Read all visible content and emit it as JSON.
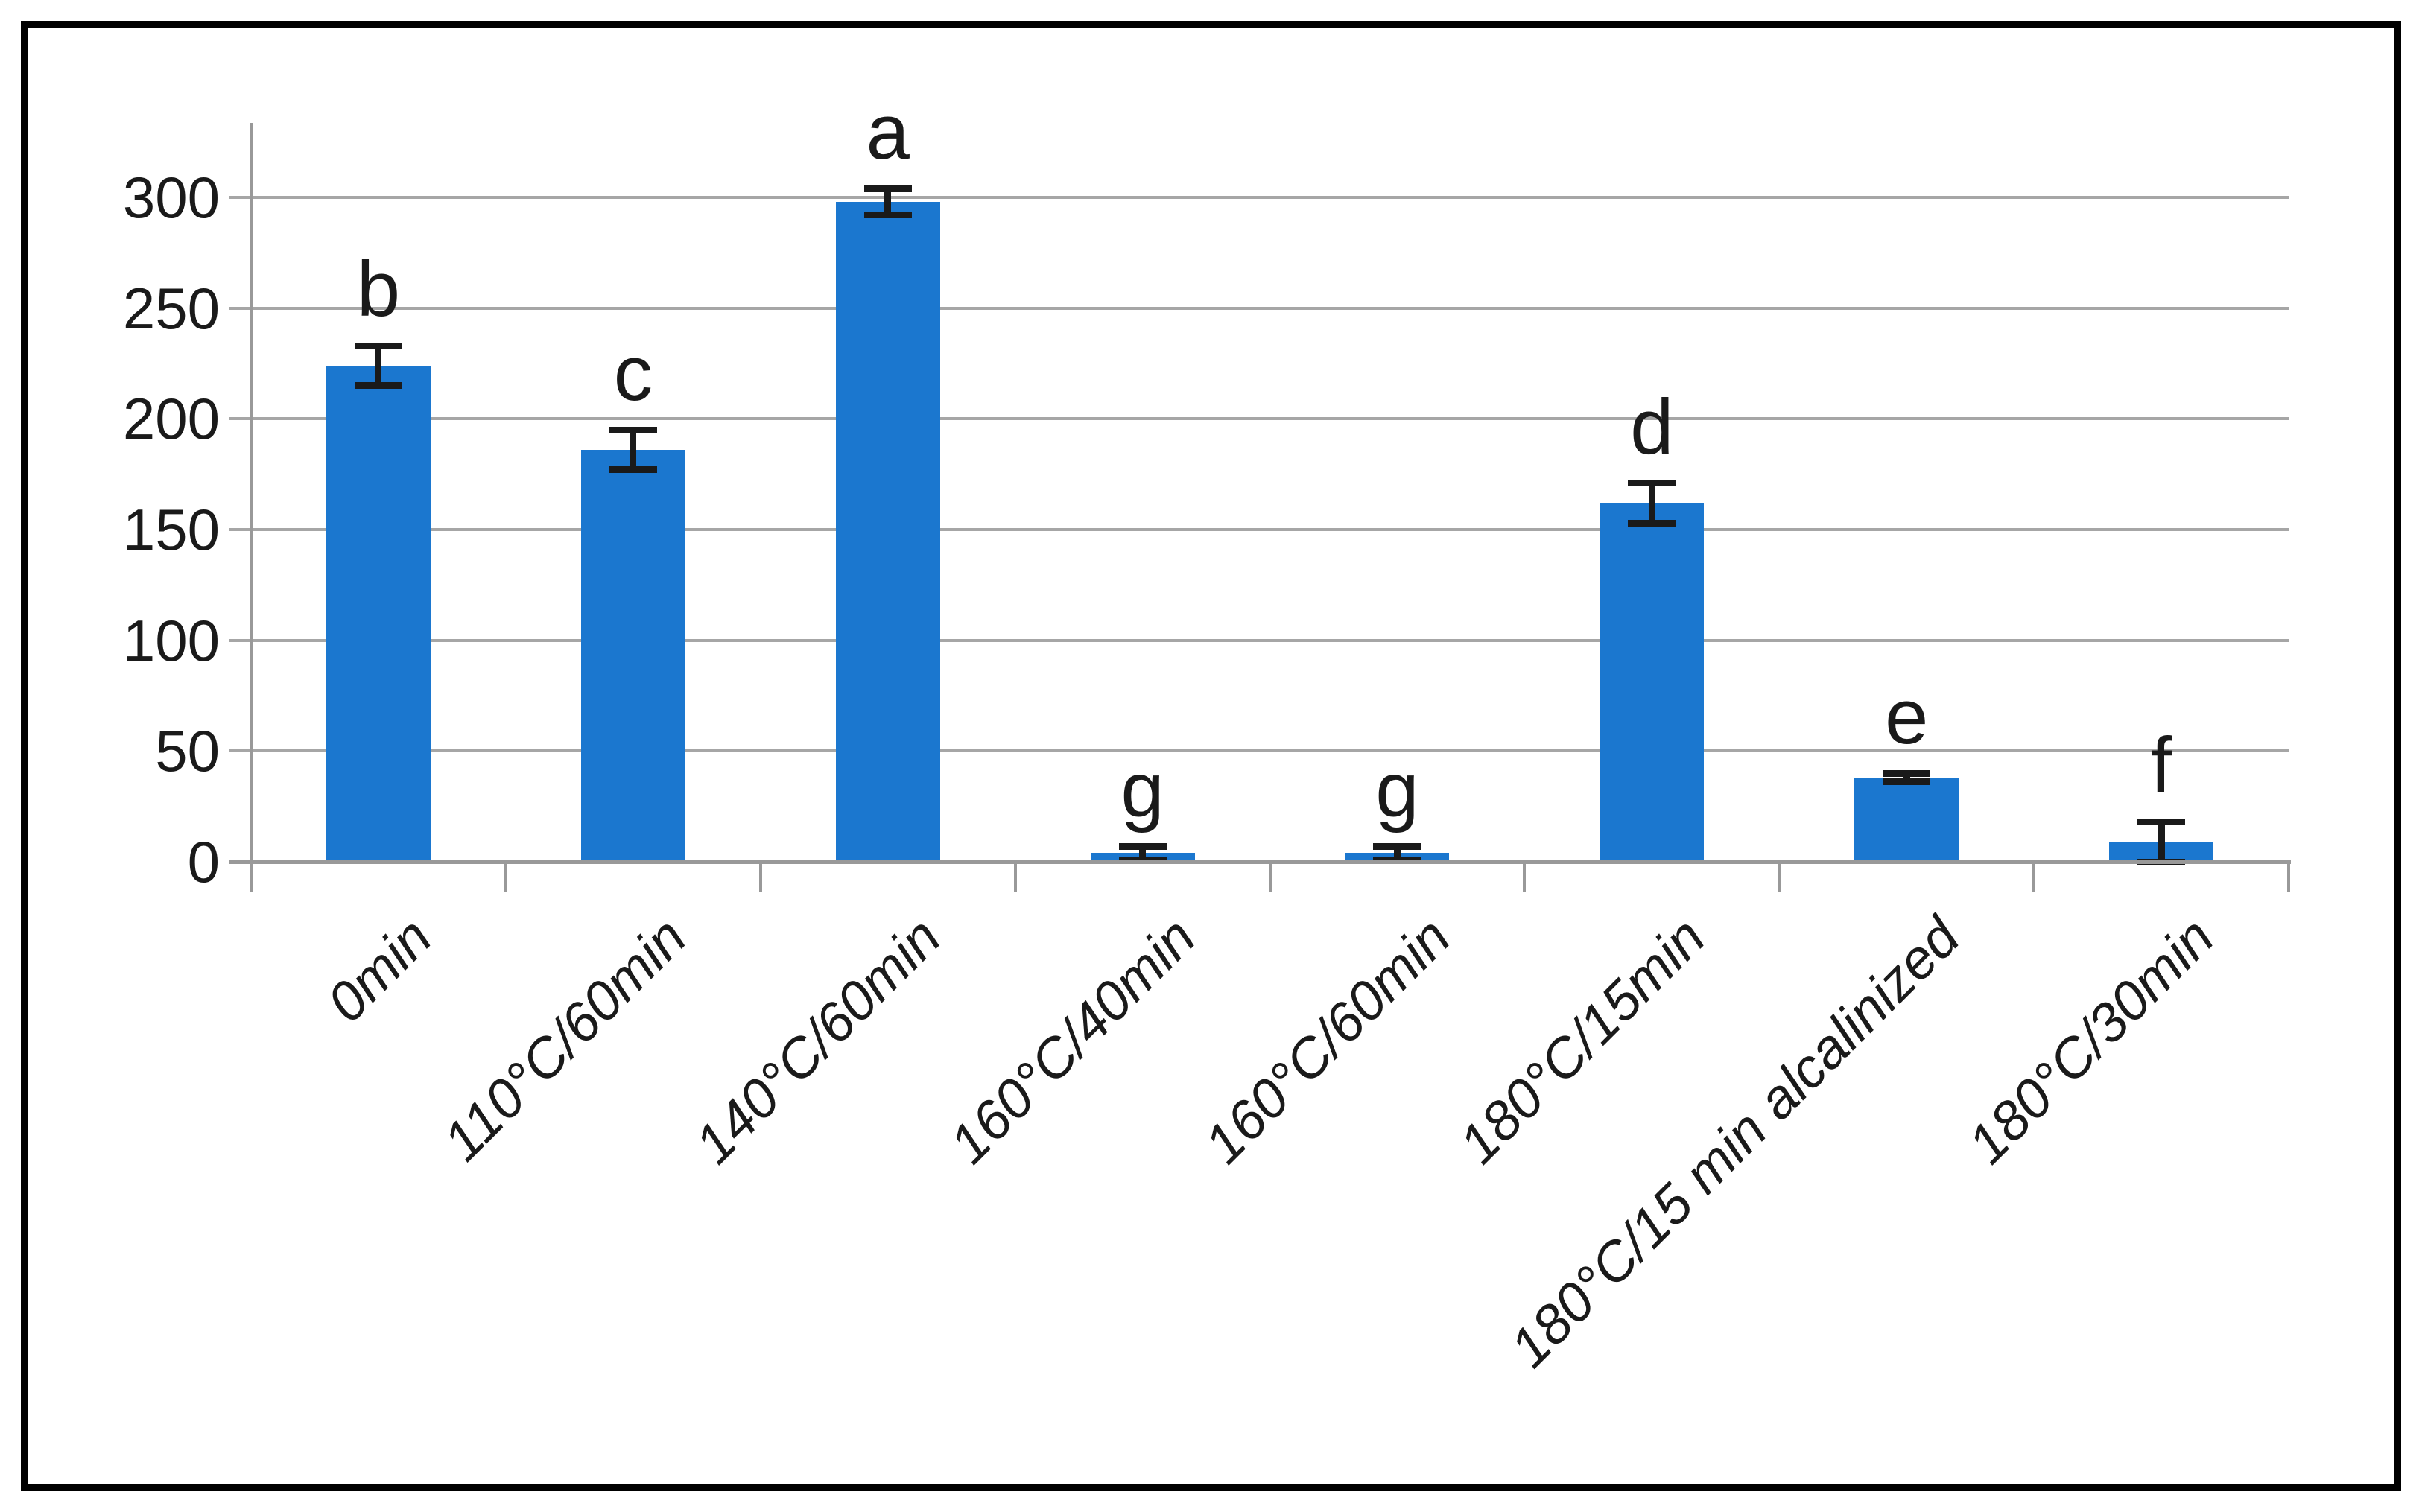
{
  "chart_data": {
    "type": "bar",
    "title": "",
    "xlabel": "",
    "ylabel": "",
    "categories": [
      "0min",
      "110°C/60min",
      "140°C/60min",
      "160°C/40min",
      "160°C/60min",
      "180°C/15min",
      "180°C/15 min alcalinized",
      "180°C/30min"
    ],
    "values": [
      224,
      186,
      298,
      4,
      4,
      162,
      38,
      9
    ],
    "errors": [
      9,
      9,
      6,
      3,
      3,
      9,
      2,
      9
    ],
    "bar_letter_labels": [
      "b",
      "c",
      "a",
      "g",
      "g",
      "d",
      "e",
      "f"
    ],
    "yticks": [
      0,
      50,
      100,
      150,
      200,
      250,
      300
    ],
    "ylim": [
      0,
      300
    ],
    "grid": "horizontal",
    "legend": "none",
    "colors": {
      "bar": "#1B77CF",
      "gridline": "#A6A6A6",
      "axis": "#999999",
      "error_bar": "#1a1a1a",
      "text": "#1a1a1a",
      "frame_border": "#000000",
      "background": "#ffffff"
    }
  }
}
